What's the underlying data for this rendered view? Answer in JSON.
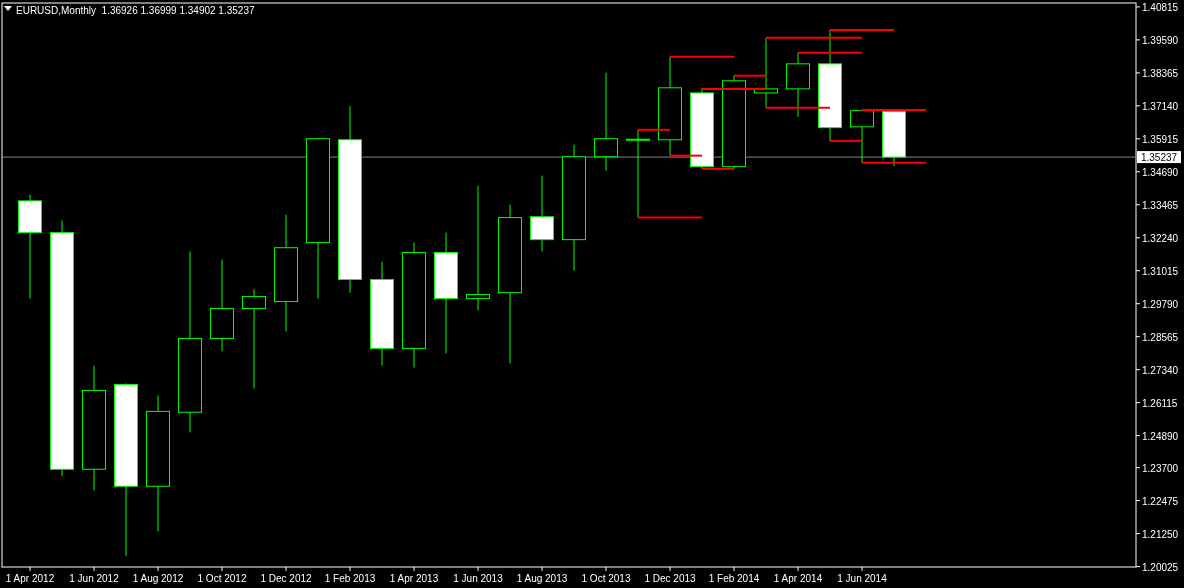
{
  "chart_data": {
    "type": "candlestick",
    "title": "EURUSD,Monthly  1.36926 1.36999 1.34902 1.35237",
    "color": "#00ff00",
    "categories": [
      "1 Apr 2012",
      null,
      "1 Jun 2012",
      null,
      "1 Aug 2012",
      null,
      "1 Oct 2012",
      null,
      "1 Dec 2012",
      null,
      "1 Feb 2013",
      null,
      "1 Apr 2013",
      null,
      "1 Jun 2013",
      null,
      "1 Aug 2013",
      null,
      "1 Oct 2013",
      null,
      "1 Dec 2013",
      null,
      "1 Feb 2014",
      null,
      "1 Apr 2014",
      null,
      "1 Jun 2014",
      null,
      null,
      null,
      null,
      null,
      null,
      null,
      null
    ],
    "ohlc": [
      [
        1.3361,
        1.3384,
        1.2998,
        1.3243
      ],
      [
        1.3243,
        1.3288,
        1.2338,
        1.2364
      ],
      [
        1.2364,
        1.2749,
        1.2285,
        1.2657
      ],
      [
        1.2679,
        1.2683,
        1.2041,
        1.2301
      ],
      [
        1.2301,
        1.2638,
        1.2134,
        1.2579
      ],
      [
        1.2576,
        1.3173,
        1.2501,
        1.285
      ],
      [
        1.285,
        1.3143,
        1.2802,
        1.2961
      ],
      [
        1.2961,
        1.3032,
        1.2664,
        1.3006
      ],
      [
        1.2987,
        1.331,
        1.2876,
        1.3187
      ],
      [
        1.3206,
        1.3596,
        1.2998,
        1.3592
      ],
      [
        1.3588,
        1.3714,
        1.302,
        1.3069
      ],
      [
        1.3069,
        1.3135,
        1.275,
        1.2813
      ],
      [
        1.2813,
        1.3206,
        1.2742,
        1.3169
      ],
      [
        1.3169,
        1.3243,
        1.2794,
        1.2998
      ],
      [
        1.2998,
        1.3417,
        1.2954,
        1.3013
      ],
      [
        1.302,
        1.3347,
        1.2757,
        1.3299
      ],
      [
        1.3302,
        1.3455,
        1.3173,
        1.3217
      ],
      [
        1.3217,
        1.357,
        1.3102,
        1.3525
      ],
      [
        1.3525,
        1.3837,
        1.3473,
        1.3592
      ],
      [
        1.3586,
        1.3625,
        1.3299,
        1.359
      ],
      [
        1.3588,
        1.3896,
        1.3529,
        1.3781
      ],
      [
        1.3762,
        1.3781,
        1.348,
        1.3488
      ],
      [
        1.3488,
        1.3826,
        1.348,
        1.3807
      ],
      [
        1.3762,
        1.3967,
        1.3707,
        1.3777
      ],
      [
        1.3777,
        1.3911,
        1.3673,
        1.387
      ],
      [
        1.387,
        1.3996,
        1.3584,
        1.3633
      ],
      [
        1.3636,
        1.3699,
        1.3503,
        1.3696
      ],
      [
        1.36926,
        1.36999,
        1.34902,
        1.35237
      ],
      null,
      null,
      null,
      null,
      null,
      null,
      null
    ],
    "series": [
      {
        "type": "line",
        "color": "#ff0000",
        "values": [
          null,
          null,
          null,
          null,
          null,
          null,
          null,
          null,
          null,
          null,
          null,
          null,
          null,
          null,
          null,
          null,
          null,
          null,
          null,
          1.3625,
          1.3625,
          null,
          null,
          null,
          null,
          null,
          null,
          null,
          null,
          null,
          null,
          null,
          null,
          null,
          null
        ]
      },
      {
        "type": "line",
        "color": "#ff0000",
        "values": [
          null,
          null,
          null,
          null,
          null,
          null,
          null,
          null,
          null,
          null,
          null,
          null,
          null,
          null,
          null,
          null,
          null,
          null,
          null,
          null,
          1.3896,
          1.3896,
          1.3896,
          null,
          null,
          null,
          null,
          null,
          null,
          null,
          null,
          null,
          null,
          null,
          null
        ]
      },
      {
        "type": "line",
        "color": "#ff0000",
        "values": [
          null,
          null,
          null,
          null,
          null,
          null,
          null,
          null,
          null,
          null,
          null,
          null,
          null,
          null,
          null,
          null,
          null,
          null,
          null,
          null,
          1.3529,
          1.3529,
          null,
          null,
          null,
          null,
          null,
          null,
          null,
          null,
          null,
          null,
          null,
          null,
          null
        ]
      },
      {
        "type": "line",
        "color": "#ff0000",
        "values": [
          null,
          null,
          null,
          null,
          null,
          null,
          null,
          null,
          null,
          null,
          null,
          null,
          null,
          null,
          null,
          null,
          null,
          null,
          null,
          1.3299,
          1.3299,
          1.3299,
          null,
          null,
          null,
          null,
          null,
          null,
          null,
          null,
          null,
          null,
          null,
          null,
          null
        ]
      },
      {
        "type": "line",
        "color": "#ff0000",
        "values": [
          null,
          null,
          null,
          null,
          null,
          null,
          null,
          null,
          null,
          null,
          null,
          null,
          null,
          null,
          null,
          null,
          null,
          null,
          null,
          null,
          null,
          1.3777,
          1.3777,
          1.3777,
          null,
          null,
          null,
          null,
          null,
          null,
          null,
          null,
          null,
          null,
          null
        ]
      },
      {
        "type": "line",
        "color": "#ff0000",
        "values": [
          null,
          null,
          null,
          null,
          null,
          null,
          null,
          null,
          null,
          null,
          null,
          null,
          null,
          null,
          null,
          null,
          null,
          null,
          null,
          null,
          null,
          1.348,
          1.348,
          null,
          null,
          null,
          null,
          null,
          null,
          null,
          null,
          null,
          null,
          null,
          null
        ]
      },
      {
        "type": "line",
        "color": "#ff0000",
        "values": [
          null,
          null,
          null,
          null,
          null,
          null,
          null,
          null,
          null,
          null,
          null,
          null,
          null,
          null,
          null,
          null,
          null,
          null,
          null,
          null,
          null,
          null,
          1.3826,
          1.3826,
          null,
          null,
          null,
          null,
          null,
          null,
          null,
          null,
          null,
          null,
          null
        ]
      },
      {
        "type": "line",
        "color": "#ff0000",
        "values": [
          null,
          null,
          null,
          null,
          null,
          null,
          null,
          null,
          null,
          null,
          null,
          null,
          null,
          null,
          null,
          null,
          null,
          null,
          null,
          null,
          null,
          null,
          null,
          1.3967,
          1.3967,
          1.3967,
          1.3967,
          null,
          null,
          null,
          null,
          null,
          null,
          null,
          null
        ]
      },
      {
        "type": "line",
        "color": "#ff0000",
        "values": [
          null,
          null,
          null,
          null,
          null,
          null,
          null,
          null,
          null,
          null,
          null,
          null,
          null,
          null,
          null,
          null,
          null,
          null,
          null,
          null,
          null,
          null,
          null,
          1.3707,
          1.3707,
          1.3707,
          null,
          null,
          null,
          null,
          null,
          null,
          null,
          null,
          null
        ]
      },
      {
        "type": "line",
        "color": "#ff0000",
        "values": [
          null,
          null,
          null,
          null,
          null,
          null,
          null,
          null,
          null,
          null,
          null,
          null,
          null,
          null,
          null,
          null,
          null,
          null,
          null,
          null,
          null,
          null,
          null,
          null,
          1.3911,
          1.3911,
          1.3911,
          null,
          null,
          null,
          null,
          null,
          null,
          null,
          null
        ]
      },
      {
        "type": "line",
        "color": "#ff0000",
        "values": [
          null,
          null,
          null,
          null,
          null,
          null,
          null,
          null,
          null,
          null,
          null,
          null,
          null,
          null,
          null,
          null,
          null,
          null,
          null,
          null,
          null,
          null,
          null,
          null,
          null,
          1.3996,
          1.3996,
          1.3996,
          null,
          null,
          null,
          null,
          null,
          null,
          null
        ]
      },
      {
        "type": "line",
        "color": "#ff0000",
        "values": [
          null,
          null,
          null,
          null,
          null,
          null,
          null,
          null,
          null,
          null,
          null,
          null,
          null,
          null,
          null,
          null,
          null,
          null,
          null,
          null,
          null,
          null,
          null,
          null,
          null,
          1.3584,
          1.3584,
          null,
          null,
          null,
          null,
          null,
          null,
          null,
          null
        ]
      },
      {
        "type": "line",
        "color": "#ff0000",
        "values": [
          null,
          null,
          null,
          null,
          null,
          null,
          null,
          null,
          null,
          null,
          null,
          null,
          null,
          null,
          null,
          null,
          null,
          null,
          null,
          null,
          null,
          null,
          null,
          null,
          null,
          null,
          1.3699,
          1.3699,
          1.3699,
          null,
          null,
          null,
          null,
          null,
          null
        ]
      },
      {
        "type": "line",
        "color": "#ff0000",
        "values": [
          null,
          null,
          null,
          null,
          null,
          null,
          null,
          null,
          null,
          null,
          null,
          null,
          null,
          null,
          null,
          null,
          null,
          null,
          null,
          null,
          null,
          null,
          null,
          null,
          null,
          null,
          1.3503,
          1.3503,
          1.3503,
          null,
          null,
          null,
          null,
          null,
          null
        ]
      }
    ],
    "ylim": [
      1.2001,
      1.4096
    ],
    "yticks": [
      {
        "value": 1.40815,
        "label": "1.40815"
      },
      {
        "value": 1.3959,
        "label": "1.39590"
      },
      {
        "value": 1.38365,
        "label": "1.38365"
      },
      {
        "value": 1.3714,
        "label": "1.37140"
      },
      {
        "value": 1.35915,
        "label": "1.35915"
      },
      {
        "value": 1.3469,
        "label": "1.34690"
      },
      {
        "value": 1.33465,
        "label": "1.33465"
      },
      {
        "value": 1.3224,
        "label": "1.32240"
      },
      {
        "value": 1.31015,
        "label": "1.31015"
      },
      {
        "value": 1.2979,
        "label": "1.29790"
      },
      {
        "value": 1.28565,
        "label": "1.28565"
      },
      {
        "value": 1.2734,
        "label": "1.27340"
      },
      {
        "value": 1.26115,
        "label": "1.26115"
      },
      {
        "value": 1.2489,
        "label": "1.24890"
      },
      {
        "value": 1.237,
        "label": "1.23700"
      },
      {
        "value": 1.22475,
        "label": "1.22475"
      },
      {
        "value": 1.2125,
        "label": "1.21250"
      },
      {
        "value": 1.20025,
        "label": "1.20025"
      }
    ],
    "ref_lines": [
      {
        "axis": "y",
        "value": 1.35237,
        "label": "1.35237",
        "color": "#778899"
      }
    ]
  }
}
